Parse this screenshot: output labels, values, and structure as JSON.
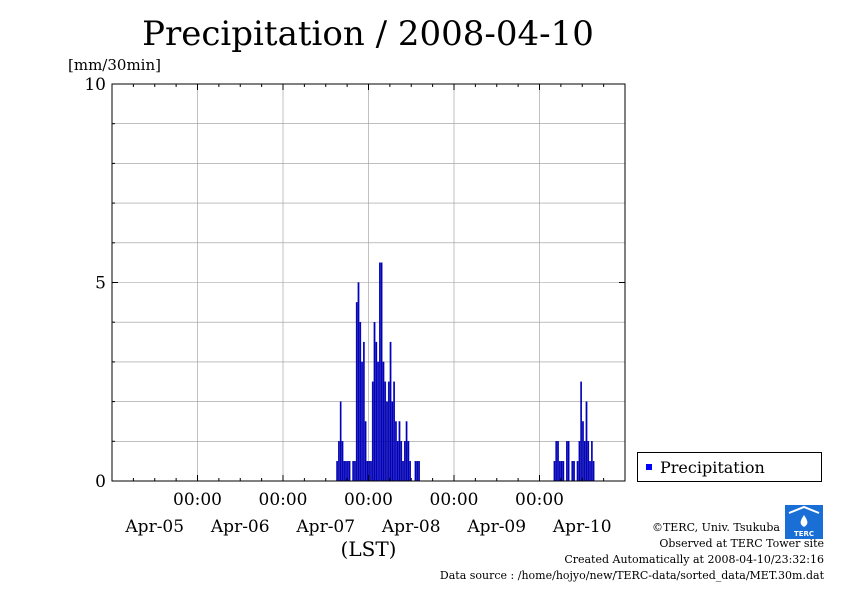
{
  "header": {
    "title": "Precipitation / 2008-04-10",
    "unit": "[mm/30min]"
  },
  "chart_data": {
    "type": "bar",
    "title": "Precipitation / 2008-04-10",
    "ylabel": "[mm/30min]",
    "xlabel": "(LST)",
    "ylim": [
      0,
      10
    ],
    "xlim_hours": [
      0,
      144
    ],
    "yticks": [
      "0",
      "5",
      "10"
    ],
    "xticks": [
      {
        "time": "00:00",
        "date": "Apr-05",
        "hour": 24
      },
      {
        "time": "00:00",
        "date": "Apr-06",
        "hour": 48
      },
      {
        "time": "00:00",
        "date": "Apr-07",
        "hour": 72
      },
      {
        "time": "00:00",
        "date": "Apr-08",
        "hour": 96
      },
      {
        "time": "00:00",
        "date": "Apr-09",
        "hour": 120
      }
    ],
    "last_date_label": {
      "date": "Apr-10",
      "hour": 132
    },
    "grid": true,
    "legend": "right",
    "series": [
      {
        "name": "Precipitation",
        "color": "#0000cc",
        "step_hours": 0.5,
        "points": [
          [
            63.0,
            0.5
          ],
          [
            63.5,
            1.0
          ],
          [
            64.0,
            2.0
          ],
          [
            64.5,
            1.0
          ],
          [
            65.0,
            0.5
          ],
          [
            65.5,
            0.5
          ],
          [
            66.0,
            0.5
          ],
          [
            66.5,
            0.5
          ],
          [
            67.5,
            0.5
          ],
          [
            68.0,
            0.5
          ],
          [
            68.5,
            4.5
          ],
          [
            69.0,
            5.0
          ],
          [
            69.5,
            4.0
          ],
          [
            70.0,
            3.0
          ],
          [
            70.5,
            3.5
          ],
          [
            71.0,
            1.5
          ],
          [
            71.5,
            0.5
          ],
          [
            72.0,
            0.5
          ],
          [
            72.5,
            0.5
          ],
          [
            73.0,
            2.5
          ],
          [
            73.5,
            4.0
          ],
          [
            74.0,
            3.5
          ],
          [
            74.5,
            3.0
          ],
          [
            75.0,
            5.5
          ],
          [
            75.5,
            5.5
          ],
          [
            76.0,
            3.0
          ],
          [
            76.5,
            2.5
          ],
          [
            77.0,
            2.0
          ],
          [
            77.5,
            2.5
          ],
          [
            78.0,
            3.5
          ],
          [
            78.5,
            2.0
          ],
          [
            79.0,
            2.5
          ],
          [
            79.5,
            1.5
          ],
          [
            80.0,
            1.0
          ],
          [
            80.5,
            1.5
          ],
          [
            81.0,
            1.0
          ],
          [
            81.5,
            0.5
          ],
          [
            82.0,
            1.0
          ],
          [
            82.5,
            1.5
          ],
          [
            83.0,
            1.0
          ],
          [
            83.5,
            0.5
          ],
          [
            85.0,
            0.5
          ],
          [
            85.5,
            0.5
          ],
          [
            86.0,
            0.5
          ],
          [
            124.0,
            0.5
          ],
          [
            124.5,
            1.0
          ],
          [
            125.0,
            1.0
          ],
          [
            125.5,
            0.5
          ],
          [
            126.0,
            0.5
          ],
          [
            126.5,
            0.5
          ],
          [
            127.5,
            1.0
          ],
          [
            128.0,
            1.0
          ],
          [
            129.0,
            0.5
          ],
          [
            129.5,
            0.5
          ],
          [
            130.5,
            0.5
          ],
          [
            131.0,
            1.0
          ],
          [
            131.5,
            2.5
          ],
          [
            132.0,
            1.5
          ],
          [
            132.5,
            1.0
          ],
          [
            133.0,
            2.0
          ],
          [
            133.5,
            1.0
          ],
          [
            134.0,
            0.5
          ],
          [
            134.5,
            1.0
          ],
          [
            135.0,
            0.5
          ]
        ]
      }
    ]
  },
  "legend": {
    "label": "Precipitation"
  },
  "footer": {
    "copyright": "©TERC, Univ. Tsukuba",
    "observed": "Observed at TERC Tower site",
    "created": "Created Automatically at 2008-04-10/23:32:16",
    "source": "Data source : /home/hojyo/new/TERC-data/sorted_data/MET.30m.dat"
  },
  "logo": {
    "text": "TERC",
    "color": "#1a6fd6"
  }
}
